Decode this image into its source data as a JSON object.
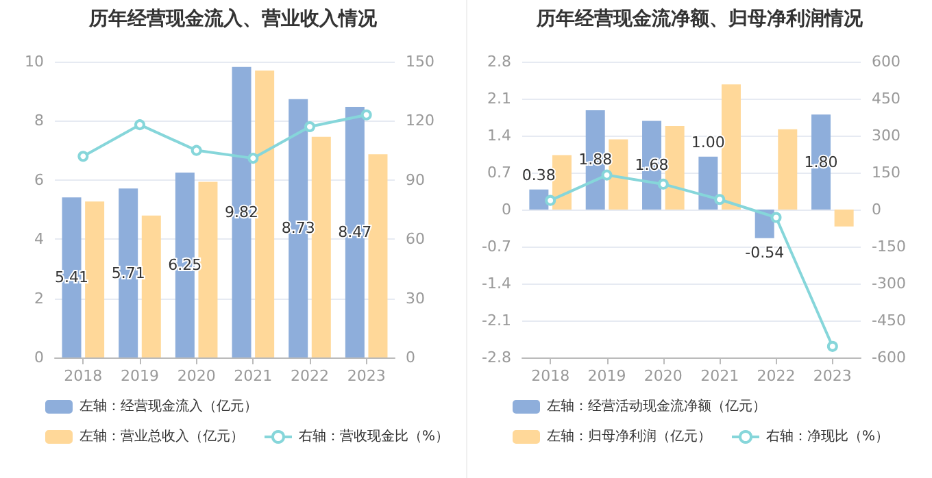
{
  "chart_data": [
    {
      "type": "bar",
      "title": "历年经营现金流入、营业收入情况",
      "categories": [
        "2018",
        "2019",
        "2020",
        "2021",
        "2022",
        "2023"
      ],
      "series": [
        {
          "name": "左轴：经营现金流入（亿元）",
          "color": "#8eaedb",
          "values": [
            5.41,
            5.71,
            6.25,
            9.82,
            8.73,
            8.47
          ],
          "value_labels": [
            "5.41",
            "5.71",
            "6.25",
            "9.82",
            "8.73",
            "8.47"
          ]
        },
        {
          "name": "左轴：营业总收入（亿元）",
          "color": "#ffd899",
          "values": [
            5.27,
            4.8,
            5.94,
            9.7,
            7.46,
            6.87
          ]
        },
        {
          "name": "右轴：营收现金比（%）",
          "type": "line",
          "axis": "y2",
          "marker": "circle",
          "color": "#86d6da",
          "values": [
            102,
            118,
            105,
            101,
            117,
            123
          ]
        }
      ],
      "ylim": [
        0,
        10
      ],
      "yticks": [
        0,
        2,
        4,
        6,
        8,
        10
      ],
      "y2lim": [
        0,
        150
      ],
      "y2ticks": [
        0,
        30,
        60,
        90,
        120,
        150
      ],
      "grid": "y",
      "legend": "bottom"
    },
    {
      "type": "bar",
      "title": "历年经营现金流净额、归母净利润情况",
      "categories": [
        "2018",
        "2019",
        "2020",
        "2021",
        "2022",
        "2023"
      ],
      "series": [
        {
          "name": "左轴：经营活动现金流净额（亿元）",
          "color": "#8eaedb",
          "values": [
            0.38,
            1.88,
            1.68,
            1.0,
            -0.54,
            1.8
          ],
          "value_labels": [
            "0.38",
            "1.88",
            "1.68",
            "1.00",
            "-0.54",
            "1.80"
          ]
        },
        {
          "name": "左轴：归母净利润（亿元）",
          "color": "#ffd899",
          "values": [
            1.03,
            1.33,
            1.58,
            2.37,
            1.52,
            -0.32
          ]
        },
        {
          "name": "右轴：净现比（%）",
          "type": "line",
          "axis": "y2",
          "marker": "circle",
          "color": "#86d6da",
          "values": [
            37,
            140,
            103,
            41,
            -32,
            -555
          ]
        }
      ],
      "ylim": [
        -2.8,
        2.8
      ],
      "yticks": [
        -2.8,
        -2.1,
        -1.4,
        -0.7,
        0,
        0.7,
        1.4,
        2.1,
        2.8
      ],
      "y2lim": [
        -600,
        600
      ],
      "y2ticks": [
        -600,
        -450,
        -300,
        -150,
        0,
        150,
        300,
        450,
        600
      ],
      "grid": "y",
      "legend": "bottom"
    }
  ]
}
